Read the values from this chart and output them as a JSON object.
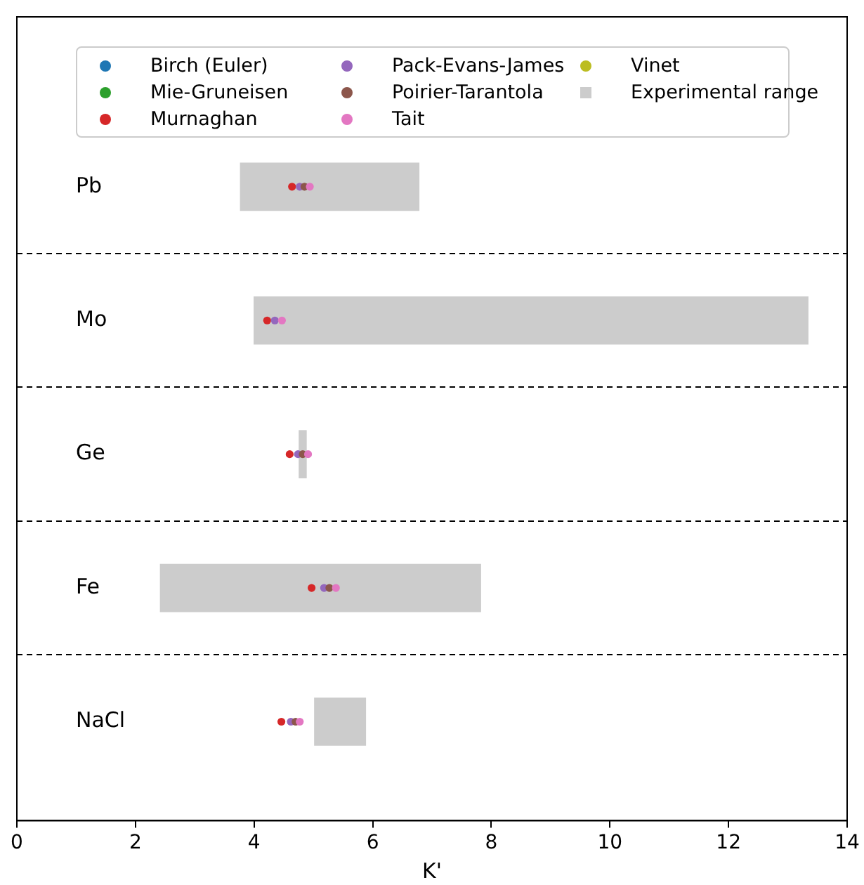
{
  "chart_data": {
    "type": "bar",
    "orientation": "horizontal",
    "xlabel": "K'",
    "categories": [
      "Pb",
      "Mo",
      "Ge",
      "Fe",
      "NaCl"
    ],
    "xlim": [
      0,
      14
    ],
    "xticks": [
      0,
      2,
      4,
      6,
      8,
      10,
      12,
      14
    ],
    "grid": "y",
    "legend": "top",
    "marker": "circle",
    "series": [
      {
        "name": "Birch (Euler)",
        "type": "scatter",
        "color": "#1f77b4",
        "values": [
          null,
          null,
          null,
          null,
          null
        ]
      },
      {
        "name": "Mie-Gruneisen",
        "type": "scatter",
        "color": "#2ca02c",
        "values": [
          null,
          null,
          null,
          null,
          null
        ]
      },
      {
        "name": "Murnaghan",
        "type": "scatter",
        "color": "#d62728",
        "values": [
          4.64,
          4.22,
          4.6,
          4.97,
          4.46
        ]
      },
      {
        "name": "Pack-Evans-James",
        "type": "scatter",
        "color": "#9467bd",
        "values": [
          4.77,
          4.35,
          4.74,
          5.18,
          4.62
        ]
      },
      {
        "name": "Poirier-Tarantola",
        "type": "scatter",
        "color": "#8c564b",
        "values": [
          4.85,
          null,
          4.82,
          5.27,
          4.7
        ]
      },
      {
        "name": "Tait",
        "type": "scatter",
        "color": "#e377c2",
        "values": [
          4.94,
          4.47,
          4.91,
          5.38,
          4.77
        ]
      },
      {
        "name": "Vinet",
        "type": "scatter",
        "color": "#bcbd22",
        "values": [
          null,
          null,
          null,
          null,
          null
        ]
      },
      {
        "name": "Experimental range",
        "color": "#cccccc",
        "base": [
          3.77,
          4.0,
          4.76,
          2.42,
          5.02
        ],
        "values": [
          3.01,
          9.34,
          0.12,
          5.4,
          0.86
        ]
      }
    ]
  }
}
